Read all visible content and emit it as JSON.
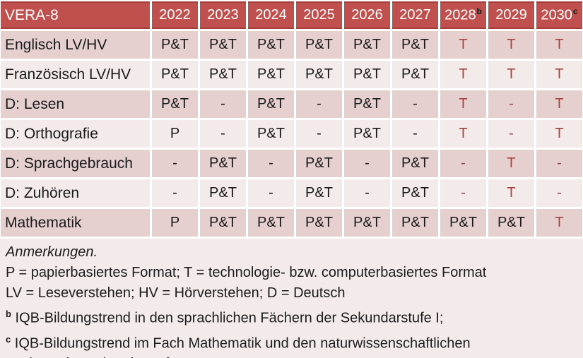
{
  "table": {
    "title": "VERA-8",
    "year_columns": [
      {
        "label": "2022"
      },
      {
        "label": "2023"
      },
      {
        "label": "2024"
      },
      {
        "label": "2025"
      },
      {
        "label": "2026"
      },
      {
        "label": "2027"
      },
      {
        "label": "2028",
        "sup": "b"
      },
      {
        "label": "2029"
      },
      {
        "label": "2030",
        "sup": "c"
      }
    ],
    "rows": [
      {
        "label": "Englisch LV/HV",
        "cells": [
          {
            "v": "P&T",
            "red": false
          },
          {
            "v": "P&T",
            "red": false
          },
          {
            "v": "P&T",
            "red": false
          },
          {
            "v": "P&T",
            "red": false
          },
          {
            "v": "P&T",
            "red": false
          },
          {
            "v": "P&T",
            "red": false
          },
          {
            "v": "T",
            "red": true
          },
          {
            "v": "T",
            "red": true
          },
          {
            "v": "T",
            "red": true
          }
        ]
      },
      {
        "label": "Französisch LV/HV",
        "cells": [
          {
            "v": "P&T",
            "red": false
          },
          {
            "v": "P&T",
            "red": false
          },
          {
            "v": "P&T",
            "red": false
          },
          {
            "v": "P&T",
            "red": false
          },
          {
            "v": "P&T",
            "red": false
          },
          {
            "v": "P&T",
            "red": false
          },
          {
            "v": "T",
            "red": true
          },
          {
            "v": "T",
            "red": true
          },
          {
            "v": "T",
            "red": true
          }
        ]
      },
      {
        "label": "D: Lesen",
        "cells": [
          {
            "v": "P&T",
            "red": false
          },
          {
            "v": "-",
            "red": false
          },
          {
            "v": "P&T",
            "red": false
          },
          {
            "v": "-",
            "red": false
          },
          {
            "v": "P&T",
            "red": false
          },
          {
            "v": "-",
            "red": false
          },
          {
            "v": "T",
            "red": true
          },
          {
            "v": "-",
            "red": true
          },
          {
            "v": "T",
            "red": true
          }
        ]
      },
      {
        "label": "D: Orthografie",
        "cells": [
          {
            "v": "P",
            "red": false
          },
          {
            "v": "-",
            "red": false
          },
          {
            "v": "P&T",
            "red": false
          },
          {
            "v": "-",
            "red": false
          },
          {
            "v": "P&T",
            "red": false
          },
          {
            "v": "-",
            "red": false
          },
          {
            "v": "T",
            "red": true
          },
          {
            "v": "-",
            "red": true
          },
          {
            "v": "T",
            "red": true
          }
        ]
      },
      {
        "label": "D: Sprachgebrauch",
        "cells": [
          {
            "v": "-",
            "red": false
          },
          {
            "v": "P&T",
            "red": false
          },
          {
            "v": "-",
            "red": false
          },
          {
            "v": "P&T",
            "red": false
          },
          {
            "v": "-",
            "red": false
          },
          {
            "v": "P&T",
            "red": false
          },
          {
            "v": "-",
            "red": true
          },
          {
            "v": "T",
            "red": true
          },
          {
            "v": "-",
            "red": true
          }
        ]
      },
      {
        "label": "D: Zuhören",
        "cells": [
          {
            "v": "-",
            "red": false
          },
          {
            "v": "P&T",
            "red": false
          },
          {
            "v": "-",
            "red": false
          },
          {
            "v": "P&T",
            "red": false
          },
          {
            "v": "-",
            "red": false
          },
          {
            "v": "P&T",
            "red": false
          },
          {
            "v": "-",
            "red": true
          },
          {
            "v": "T",
            "red": true
          },
          {
            "v": "-",
            "red": true
          }
        ]
      },
      {
        "label": "Mathematik",
        "cells": [
          {
            "v": "P",
            "red": false
          },
          {
            "v": "P&T",
            "red": false
          },
          {
            "v": "P&T",
            "red": false
          },
          {
            "v": "P&T",
            "red": false
          },
          {
            "v": "P&T",
            "red": false
          },
          {
            "v": "P&T",
            "red": false
          },
          {
            "v": "P&T",
            "red": false
          },
          {
            "v": "P&T",
            "red": false
          },
          {
            "v": "T",
            "red": true
          }
        ]
      }
    ]
  },
  "notes": {
    "lines": [
      {
        "text": "Anmerkungen.",
        "italic": true
      },
      {
        "text": "P = papierbasiertes Format; T = technologie- bzw. computerbasiertes Format"
      },
      {
        "text": "LV = Leseverstehen; HV = Hörverstehen; D = Deutsch"
      },
      {
        "sup": "b",
        "text": "IQB-Bildungstrend in den sprachlichen Fächern der Sekundarstufe I;"
      },
      {
        "sup": "c",
        "text": "IQB-Bildungstrend im Fach Mathematik und den naturwissenschaftlichen"
      },
      {
        "text": "Fächern der Sekundarstufe I"
      }
    ]
  },
  "colors": {
    "header_bg": "#c0504d",
    "header_border": "#a53c3a",
    "band_dark": "#e5cfcf",
    "band_light": "#f3eaea",
    "red_text": "#a3433f",
    "notes_bg": "#f3eaea",
    "bottom_strip": "#dfc5c5"
  }
}
